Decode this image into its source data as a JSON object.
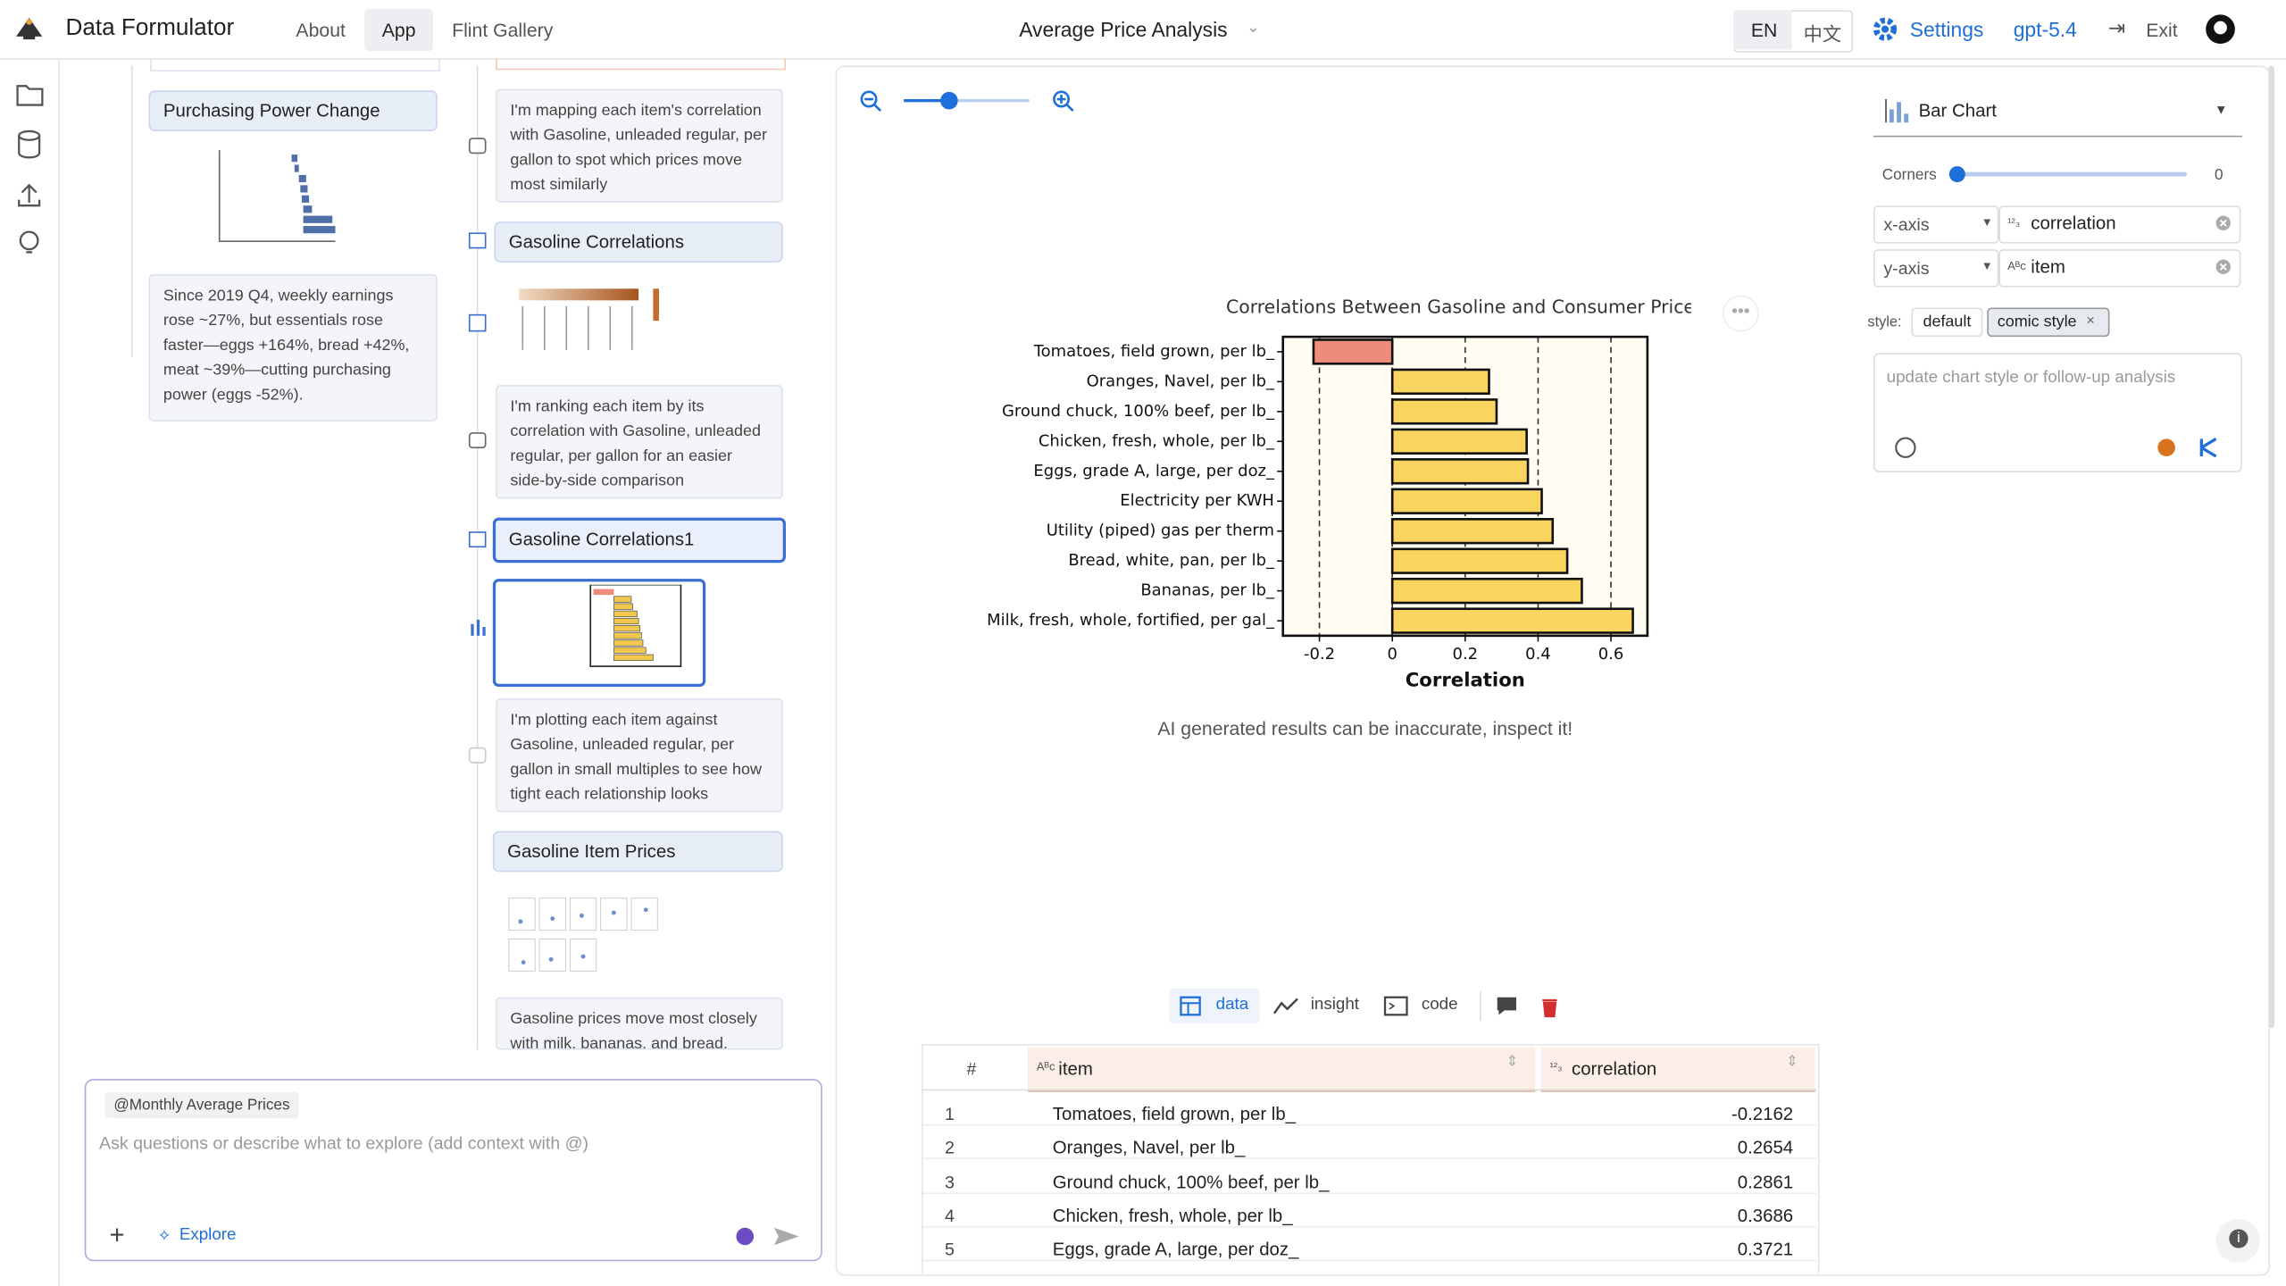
{
  "header": {
    "app_name": "Data Formulator",
    "nav": [
      "About",
      "App",
      "Flint Gallery"
    ],
    "title": "Average Price Analysis",
    "lang": [
      "EN",
      "中文"
    ],
    "settings": "Settings",
    "model": "gpt-5.4",
    "exit": "Exit"
  },
  "threads": {
    "left": {
      "card": "Purchasing Power Change",
      "insight": "Since 2019 Q4, weekly earnings rose ~27%, but essentials rose faster—eggs +164%, bread +42%, meat ~39%—cutting purchasing power (eggs -52%)."
    },
    "right": [
      "I'm mapping each item's correlation with Gasoline, unleaded regular, per gallon to spot which prices move most similarly",
      "Gasoline Correlations",
      "I'm ranking each item by its correlation with Gasoline, unleaded regular, per gallon for an easier side-by-side comparison",
      "Gasoline Correlations1",
      "I'm plotting each item against Gasoline, unleaded regular, per gallon in small multiples to see how tight each relationship looks",
      "Gasoline Item Prices",
      "Gasoline prices move most closely with milk, bananas, and bread."
    ]
  },
  "chat": {
    "context": "@Monthly Average Prices",
    "placeholder": "Ask questions or describe what to explore (add context with @)",
    "explore": "Explore"
  },
  "chart_data": {
    "type": "bar",
    "orientation": "horizontal",
    "title": "Correlations Between Gasoline and Consumer Prices",
    "xlabel": "Correlation",
    "categories": [
      "Tomatoes, field grown, per lb_",
      "Oranges, Navel, per lb_",
      "Ground chuck, 100% beef, per lb_",
      "Chicken, fresh, whole, per lb_",
      "Eggs, grade A, large, per doz_",
      "Electricity per KWH",
      "Utility (piped) gas per therm",
      "Bread, white, pan, per lb_",
      "Bananas, per lb_",
      "Milk, fresh, whole, fortified, per gal_"
    ],
    "values": [
      -0.2162,
      0.2654,
      0.2861,
      0.3686,
      0.3721,
      0.41,
      0.44,
      0.48,
      0.52,
      0.66
    ],
    "colors": [
      "#ee8c7c",
      "#f9d45e",
      "#f9d45e",
      "#f9d45e",
      "#f9d45e",
      "#f9d45e",
      "#f9d45e",
      "#f9d45e",
      "#f9d45e",
      "#f9d45e"
    ],
    "xlim": [
      -0.3,
      0.7
    ],
    "xticks": [
      -0.2,
      0,
      0.2,
      0.4,
      0.6
    ],
    "grid": true
  },
  "note": "AI generated results can be inaccurate, inspect it!",
  "tabs": [
    "data",
    "insight",
    "code"
  ],
  "table": {
    "headers": [
      "#",
      "item",
      "correlation"
    ],
    "rows": [
      [
        1,
        "Tomatoes, field grown, per lb_",
        -0.2162
      ],
      [
        2,
        "Oranges, Navel, per lb_",
        0.2654
      ],
      [
        3,
        "Ground chuck, 100% beef, per lb_",
        0.2861
      ],
      [
        4,
        "Chicken, fresh, whole, per lb_",
        0.3686
      ],
      [
        5,
        "Eggs, grade A, large, per doz_",
        0.3721
      ]
    ]
  },
  "panel": {
    "chart_type": "Bar Chart",
    "corners_label": "Corners",
    "corners_value": 0,
    "x_axis": "x-axis",
    "x_field": "correlation",
    "y_axis": "y-axis",
    "y_field": "item",
    "style_label": "style:",
    "styles": [
      "default",
      "comic style"
    ],
    "followup": "update chart style or follow-up analysis"
  }
}
